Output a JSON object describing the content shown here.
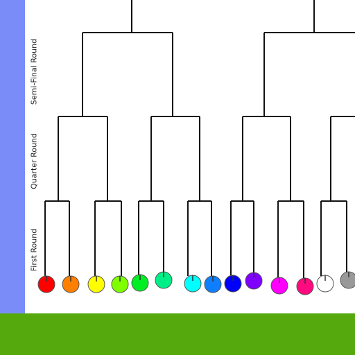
{
  "rounds": {
    "semi_final": "Semi-Final Round",
    "quarter": "Quarter Round",
    "first": "First Round"
  },
  "colors": {
    "sidebar": "#7a8cf7",
    "ground": "#55a90d",
    "bracket_line": "#111111"
  },
  "players": [
    {
      "name": "player-red",
      "color": "#ff0000"
    },
    {
      "name": "player-orange",
      "color": "#ff7f00"
    },
    {
      "name": "player-yellow",
      "color": "#ffff00"
    },
    {
      "name": "player-lime",
      "color": "#7fff00"
    },
    {
      "name": "player-green",
      "color": "#00ee22"
    },
    {
      "name": "player-spring-green",
      "color": "#00ee88"
    },
    {
      "name": "player-cyan",
      "color": "#00ffff"
    },
    {
      "name": "player-azure",
      "color": "#0f7fff"
    },
    {
      "name": "player-blue",
      "color": "#0000ff"
    },
    {
      "name": "player-violet",
      "color": "#8000ff"
    },
    {
      "name": "player-magenta",
      "color": "#ff00ff"
    },
    {
      "name": "player-rose",
      "color": "#ff0a7f"
    },
    {
      "name": "player-white",
      "color": "#ffffff"
    },
    {
      "name": "player-gray",
      "color": "#999999"
    }
  ]
}
